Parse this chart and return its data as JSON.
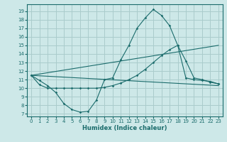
{
  "bg_color": "#cde8e8",
  "grid_color": "#aacccc",
  "line_color": "#1a6b6b",
  "xlabel": "Humidex (Indice chaleur)",
  "xlim": [
    -0.5,
    23.5
  ],
  "ylim": [
    6.7,
    19.8
  ],
  "xticks": [
    0,
    1,
    2,
    3,
    4,
    5,
    6,
    7,
    8,
    9,
    10,
    11,
    12,
    13,
    14,
    15,
    16,
    17,
    18,
    19,
    20,
    21,
    22,
    23
  ],
  "yticks": [
    7,
    8,
    9,
    10,
    11,
    12,
    13,
    14,
    15,
    16,
    17,
    18,
    19
  ],
  "curve1_x": [
    0,
    1,
    2,
    3,
    4,
    5,
    6,
    7,
    8,
    9,
    10,
    11,
    12,
    13,
    14,
    15,
    16,
    17,
    18,
    19,
    20,
    21,
    22,
    23
  ],
  "curve1_y": [
    11.5,
    10.9,
    10.3,
    9.5,
    8.2,
    7.5,
    7.2,
    7.3,
    8.6,
    11.0,
    11.2,
    13.3,
    15.0,
    17.0,
    18.2,
    19.2,
    18.5,
    17.3,
    15.0,
    11.2,
    11.0,
    10.9,
    10.8,
    10.5
  ],
  "curve2_x": [
    0,
    1,
    2,
    3,
    4,
    5,
    6,
    7,
    8,
    9,
    10,
    11,
    12,
    13,
    14,
    15,
    16,
    17,
    18,
    19,
    20,
    21,
    22,
    23
  ],
  "curve2_y": [
    11.5,
    10.4,
    10.0,
    10.0,
    10.0,
    10.0,
    10.0,
    10.0,
    10.0,
    10.1,
    10.3,
    10.6,
    11.0,
    11.5,
    12.2,
    13.0,
    13.8,
    14.5,
    15.0,
    13.2,
    11.2,
    11.0,
    10.7,
    10.5
  ],
  "line3_x": [
    0,
    23
  ],
  "line3_y": [
    11.5,
    10.3
  ],
  "line4_x": [
    0,
    23
  ],
  "line4_y": [
    11.5,
    15.0
  ]
}
